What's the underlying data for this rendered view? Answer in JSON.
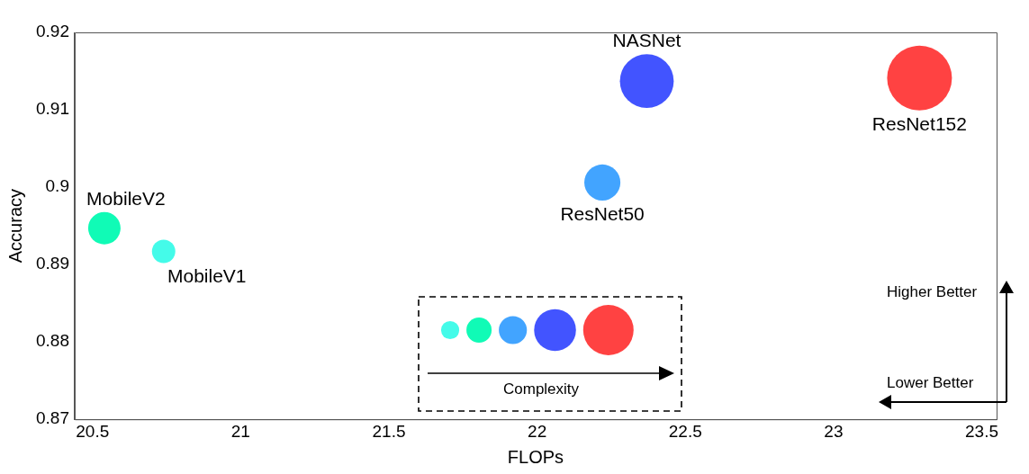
{
  "chart_data": {
    "type": "bubble",
    "xlabel": "FLOPs",
    "ylabel": "Accuracy",
    "xlim": [
      20.44,
      23.55
    ],
    "xticks": [
      20.5,
      21,
      21.5,
      22,
      22.5,
      23,
      23.5
    ],
    "ylim": [
      0.87,
      0.92
    ],
    "yticks": [
      0.87,
      0.88,
      0.89,
      0.9,
      0.91,
      0.92
    ],
    "grid": false,
    "legend": false,
    "annotations": [
      "Complexity",
      "Higher Better",
      "Lower Better"
    ],
    "series": [
      {
        "name": "MobileV1",
        "color": "#44fbe9",
        "x": [
          20.74
        ],
        "values": [
          0.8917
        ],
        "sizes": [
          0.13
        ]
      },
      {
        "name": "MobileV2",
        "color": "#10fbb6",
        "x": [
          20.54
        ],
        "values": [
          0.8947
        ],
        "sizes": [
          0.25
        ]
      },
      {
        "name": "ResNet50",
        "color": "#42a4ff",
        "x": [
          22.22
        ],
        "values": [
          0.9006
        ],
        "sizes": [
          0.31
        ]
      },
      {
        "name": "NASNet",
        "color": "#4254ff",
        "x": [
          22.37
        ],
        "values": [
          0.9137
        ],
        "sizes": [
          0.69
        ]
      },
      {
        "name": "ResNet152",
        "color": "#ff4242",
        "x": [
          23.29
        ],
        "values": [
          0.9141
        ],
        "sizes": [
          1
        ]
      }
    ]
  }
}
